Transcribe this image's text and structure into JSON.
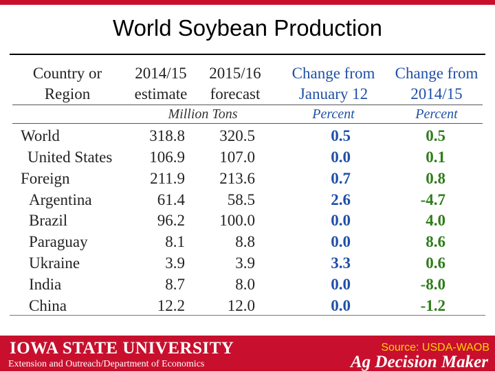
{
  "slide": {
    "title": "World Soybean Production"
  },
  "table": {
    "headers": {
      "country_line1": "Country or",
      "country_line2": "Region",
      "estimate_line1": "2014/15",
      "estimate_line2": "estimate",
      "forecast_line1": "2015/16",
      "forecast_line2": "forecast",
      "chg_jan_line1": "Change from",
      "chg_jan_line2": "January 12",
      "chg_prev_line1": "Change from",
      "chg_prev_line2": "2014/15"
    },
    "units": {
      "tons": "Million Tons",
      "pct1": "Percent",
      "pct2": "Percent"
    },
    "rows": [
      {
        "name": "World",
        "est": "318.8",
        "fc": "320.5",
        "chg_jan": "0.5",
        "chg_prev": "0.5"
      },
      {
        "name": "United States",
        "est": "106.9",
        "fc": "107.0",
        "chg_jan": "0.0",
        "chg_prev": "0.1"
      },
      {
        "name": "Foreign",
        "est": "211.9",
        "fc": "213.6",
        "chg_jan": "0.7",
        "chg_prev": "0.8"
      },
      {
        "name": "Argentina",
        "est": "61.4",
        "fc": "58.5",
        "chg_jan": "2.6",
        "chg_prev": "-4.7"
      },
      {
        "name": "Brazil",
        "est": "96.2",
        "fc": "100.0",
        "chg_jan": "0.0",
        "chg_prev": "4.0"
      },
      {
        "name": "Paraguay",
        "est": "8.1",
        "fc": "8.8",
        "chg_jan": "0.0",
        "chg_prev": "8.6"
      },
      {
        "name": "Ukraine",
        "est": "3.9",
        "fc": "3.9",
        "chg_jan": "3.3",
        "chg_prev": "0.6"
      },
      {
        "name": "India",
        "est": "8.7",
        "fc": "8.0",
        "chg_jan": "0.0",
        "chg_prev": "-8.0"
      },
      {
        "name": "China",
        "est": "12.2",
        "fc": "12.0",
        "chg_jan": "0.0",
        "chg_prev": "-1.2"
      }
    ]
  },
  "footer": {
    "university": "IOWA STATE UNIVERSITY",
    "department": "Extension and Outreach/Department of Economics",
    "source": "Source: USDA-WAOB",
    "brand": "Ag Decision Maker"
  },
  "colors": {
    "brand_red": "#c8102e",
    "header_blue": "#1f4fa6",
    "change_green": "#2e7d1a",
    "source_yellow": "#ffd200"
  }
}
